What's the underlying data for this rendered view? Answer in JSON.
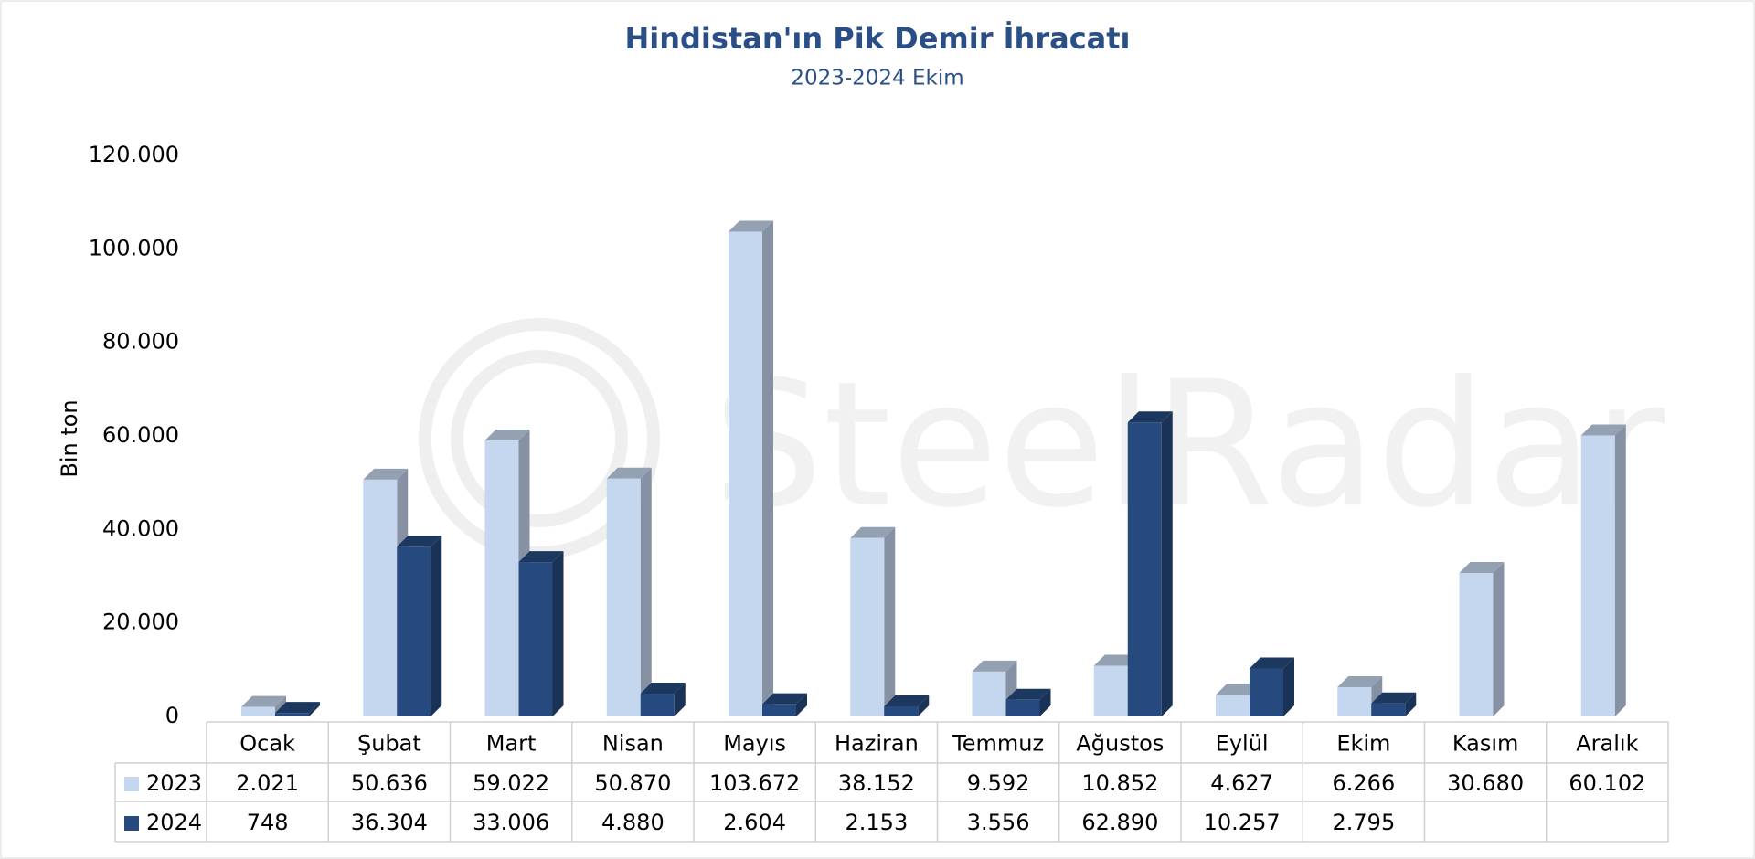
{
  "chart_data": {
    "type": "bar3d",
    "title": "Hindistan'ın Pik Demir İhracatı",
    "subtitle": "2023-2024 Ekim",
    "y_label": "Bin ton",
    "categories": [
      "Ocak",
      "Şubat",
      "Mart",
      "Nisan",
      "Mayıs",
      "Haziran",
      "Temmuz",
      "Ağustos",
      "Eylül",
      "Ekim",
      "Kasım",
      "Aralık"
    ],
    "series": [
      {
        "name": "2023",
        "color": "#c5d6ef",
        "values": [
          2021,
          50636,
          59022,
          50870,
          103672,
          38152,
          9592,
          10852,
          4627,
          6266,
          30680,
          60102
        ],
        "value_labels": [
          "2.021",
          "50.636",
          "59.022",
          "50.870",
          "103.672",
          "38.152",
          "9.592",
          "10.852",
          "4.627",
          "6.266",
          "30.680",
          "60.102"
        ]
      },
      {
        "name": "2024",
        "color": "#264a7e",
        "values": [
          748,
          36304,
          33006,
          4880,
          2604,
          2153,
          3556,
          62890,
          10257,
          2795,
          null,
          null
        ],
        "value_labels": [
          "748",
          "36.304",
          "33.006",
          "4.880",
          "2.604",
          "2.153",
          "3.556",
          "62.890",
          "10.257",
          "2.795",
          null,
          null
        ]
      }
    ],
    "ylim": [
      0,
      120000
    ],
    "yticks": [
      0,
      {
        "value": 20000,
        "label": "20.000"
      },
      {
        "value": 40000,
        "label": "40.000"
      },
      {
        "value": 60000,
        "label": "60.000"
      },
      {
        "value": 80000,
        "label": "80.000"
      },
      {
        "value": 100000,
        "label": "100.000"
      },
      {
        "value": 120000,
        "label": "120.000"
      }
    ],
    "grid": false,
    "data_table": true
  },
  "watermark": "SteelRadar"
}
